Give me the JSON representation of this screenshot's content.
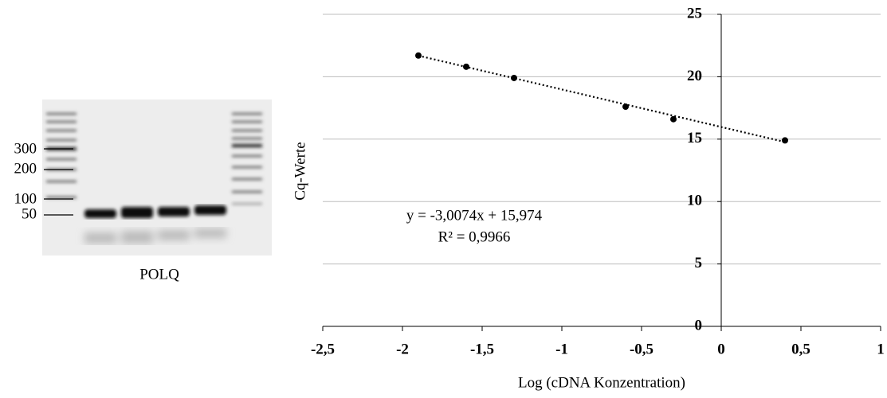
{
  "gel": {
    "marker_labels": [
      "300",
      "200",
      "100",
      "50"
    ],
    "caption": "POLQ"
  },
  "chart_data": {
    "type": "scatter",
    "x_label": "Log (cDNA Konzentration)",
    "y_label": "Cq-Werte",
    "x": [
      -1.9,
      -1.6,
      -1.3,
      -0.6,
      -0.3,
      0.4
    ],
    "series": [
      {
        "name": "Cq",
        "color": "#000000",
        "values": [
          21.7,
          20.8,
          19.9,
          17.6,
          16.6,
          14.9
        ]
      }
    ],
    "trendline": {
      "equation": "y = -3,0074x + 15,974",
      "r2": "R² = 0,9966",
      "slope": -3.0074,
      "intercept": 15.974
    },
    "xlim": [
      -2.5,
      1
    ],
    "xticks": [
      {
        "value": -2.5,
        "label": "-2,5"
      },
      -2,
      {
        "value": -1.5,
        "label": "-1,5"
      },
      -1,
      {
        "value": -0.5,
        "label": "-0,5"
      },
      0,
      {
        "value": 0.5,
        "label": "0,5"
      },
      1
    ],
    "ylim": [
      0,
      25
    ],
    "yticks": [
      0,
      5,
      10,
      15,
      20,
      25
    ],
    "grid": true
  }
}
